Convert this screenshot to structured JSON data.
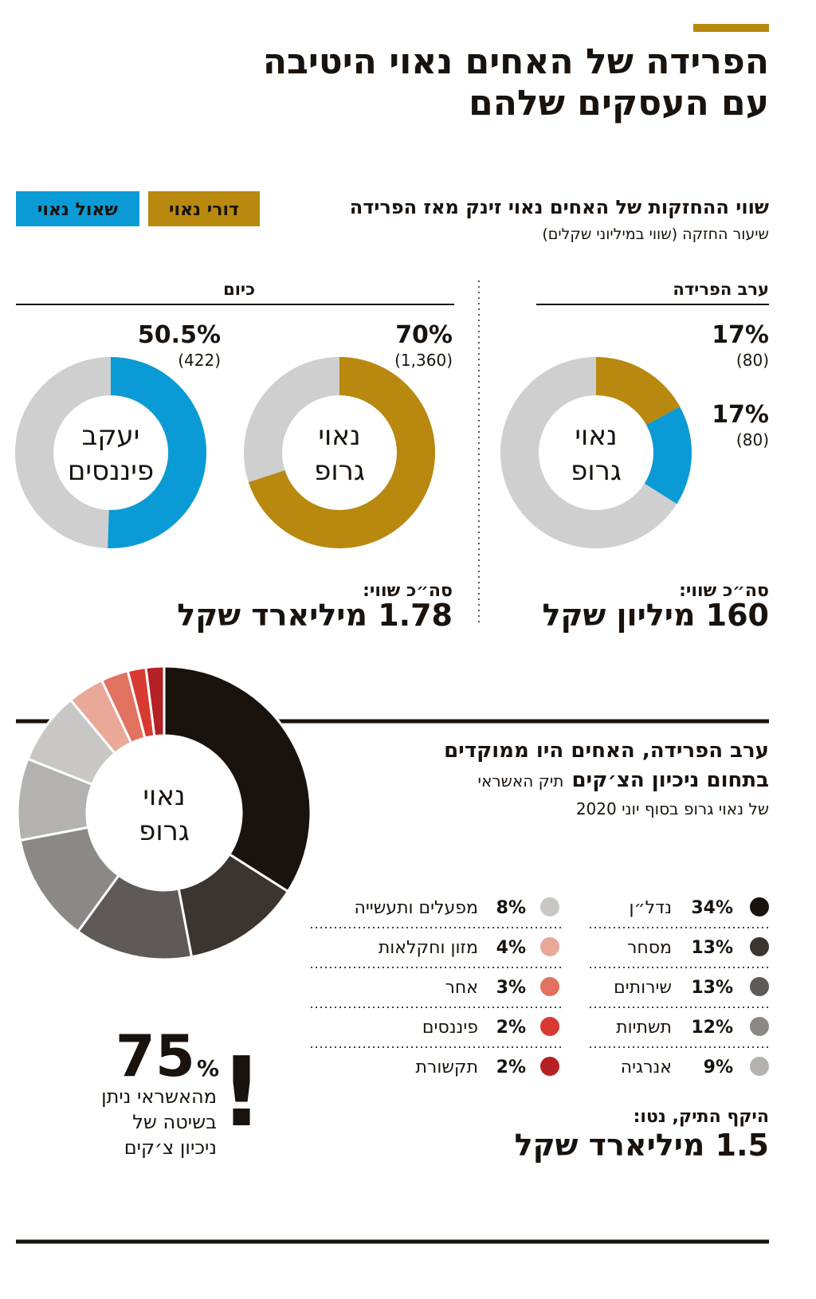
{
  "title": [
    "הפרידה של האחים נאוי היטיבה",
    "עם העסקים שלהם"
  ],
  "holdings": {
    "heading": "שווי ההחזקות של האחים נאוי זינק מאז הפרידה",
    "subheading": "שיעור החזקה (שווי במיליוני שקלים)",
    "before": {
      "label": "ערב הפרידה",
      "total_label": "סה״כ שווי:",
      "total": "160 מיליון שקל"
    },
    "today": {
      "label": "כיום",
      "total_label": "סה״כ שווי:",
      "total": "1.78 מיליארד שקל"
    }
  },
  "callout": {
    "number": "75",
    "unit": "%",
    "mark": "!",
    "lines": [
      "מהאשראי ניתן",
      "בשיטה של",
      "ניכיון צ׳קים"
    ]
  },
  "chart_data": [
    {
      "type": "donut",
      "center_label": [
        "נאוי",
        "גרופ"
      ],
      "series": [
        {
          "name": "דורי נאוי",
          "color": "#b8890e",
          "values": [
            17
          ],
          "value_labels": [
            "17%"
          ],
          "amount_labels": [
            "(80)"
          ]
        },
        {
          "name": "שאול נאוי",
          "color": "#0a9bd6",
          "values": [
            17
          ],
          "value_labels": [
            "17%"
          ],
          "amount_labels": [
            "(80)"
          ]
        }
      ]
    },
    {
      "type": "donut",
      "center_label": [
        "נאוי",
        "גרופ"
      ],
      "series": [
        {
          "name": "דורי נאוי",
          "color": "#b8890e",
          "values": [
            70
          ],
          "value_labels": [
            "70%"
          ],
          "amount_labels": [
            "(1,360)"
          ]
        }
      ]
    },
    {
      "type": "donut",
      "center_label": [
        "יעקב",
        "פיננסים"
      ],
      "series": [
        {
          "name": "שאול נאוי",
          "color": "#0a9bd6",
          "values": [
            50.5
          ],
          "value_labels": [
            "50.5%"
          ],
          "amount_labels": [
            "(422)"
          ]
        }
      ]
    },
    {
      "type": "pie",
      "title": [
        "ערב הפרידה, האחים היו ממוקדים",
        "בתחום ניכיון הצ׳קים"
      ],
      "subtitle": [
        "תיק האשראי",
        "של נאוי גרופ בסוף יוני 2020"
      ],
      "center_label": [
        "נאוי",
        "גרופ"
      ],
      "categories": [
        "נדל״ן",
        "מסחר",
        "שירותים",
        "תשתיות",
        "אנרגיה",
        "מפעלים ותעשייה",
        "מזון וחקלאות",
        "אחר",
        "פיננסים",
        "תקשורת"
      ],
      "values": [
        34,
        13,
        13,
        12,
        9,
        8,
        4,
        3,
        2,
        2
      ],
      "value_labels": [
        "34%",
        "13%",
        "13%",
        "12%",
        "9%",
        "8%",
        "4%",
        "3%",
        "2%",
        "2%"
      ],
      "colors": [
        "#1a120c",
        "#3b342f",
        "#5f5a57",
        "#8c8886",
        "#b4b2b1",
        "#c9c7c6",
        "#e9a898",
        "#e0725f",
        "#d83a32",
        "#b52025"
      ],
      "net_label": "היקף התיק, נטו:",
      "net_total": "1.5 מיליארד שקל"
    }
  ]
}
